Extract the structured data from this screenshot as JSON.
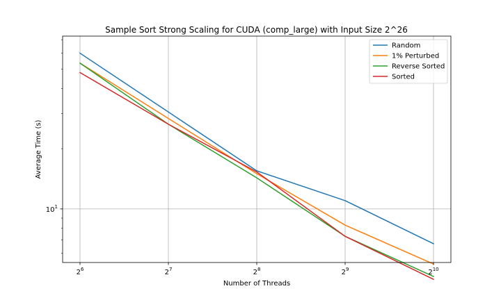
{
  "chart_data": {
    "type": "line",
    "title": "Sample Sort Strong Scaling for CUDA (comp_large) with Input Size 2^26",
    "xlabel": "Number of Threads",
    "ylabel": "Average Time (s)",
    "x_scale": "log2",
    "y_scale": "log10",
    "x": [
      64,
      128,
      256,
      512,
      1024
    ],
    "x_tick_labels": [
      {
        "base": "2",
        "exp": "6"
      },
      {
        "base": "2",
        "exp": "7"
      },
      {
        "base": "2",
        "exp": "8"
      },
      {
        "base": "2",
        "exp": "9"
      },
      {
        "base": "2",
        "exp": "10"
      }
    ],
    "y_tick_labels": [
      {
        "value": 10,
        "base": "10",
        "exp": "1"
      }
    ],
    "ylim": [
      5.4,
      73
    ],
    "grid": true,
    "legend_position": "top-right",
    "series": [
      {
        "name": "Random",
        "color": "#1f77b4",
        "values": [
          60.0,
          30.5,
          15.5,
          11.0,
          6.7
        ]
      },
      {
        "name": "1% Perturbed",
        "color": "#ff7f0e",
        "values": [
          53.5,
          28.3,
          15.0,
          8.3,
          5.3
        ]
      },
      {
        "name": "Reverse Sorted",
        "color": "#2ca02c",
        "values": [
          53.5,
          26.5,
          14.3,
          7.3,
          4.6
        ]
      },
      {
        "name": "Sorted",
        "color": "#d62728",
        "values": [
          48.0,
          26.5,
          15.3,
          7.3,
          4.45
        ]
      }
    ]
  }
}
